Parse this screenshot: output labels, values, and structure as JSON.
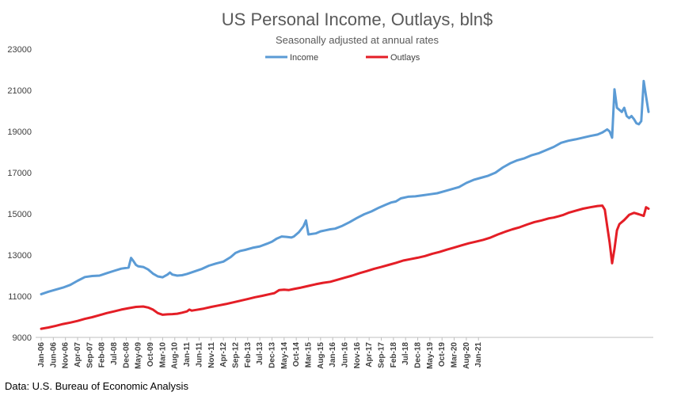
{
  "chart_data": {
    "type": "line",
    "title": "US Personal Income, Outlays, bln$",
    "subtitle": "Seasonally adjusted at annual rates",
    "source": "Data: U.S. Bureau of Economic Analysis",
    "ylim": [
      9000,
      23000
    ],
    "yticks": [
      9000,
      11000,
      13000,
      15000,
      17000,
      19000,
      21000,
      23000
    ],
    "ytick_labels": [
      "9000",
      "11000",
      "13000",
      "15000",
      "17000",
      "19000",
      "21000",
      "23000"
    ],
    "x_range": [
      "Jan-06",
      "Feb-21"
    ],
    "x_tick_labels": [
      "Jan-06",
      "Jun-06",
      "Nov-06",
      "Apr-07",
      "Sep-07",
      "Feb-08",
      "Jul-08",
      "Dec-08",
      "May-09",
      "Oct-09",
      "Mar-10",
      "Aug-10",
      "Jan-11",
      "Jun-11",
      "Nov-11",
      "Apr-12",
      "Sep-12",
      "Feb-13",
      "Jul-13",
      "Dec-13",
      "May-14",
      "Oct-14",
      "Mar-15",
      "Aug-15",
      "Jan-16",
      "Jun-16",
      "Nov-16",
      "Apr-17",
      "Sep-17",
      "Feb-18",
      "Jul-18",
      "Dec-18",
      "May-19",
      "Oct-19",
      "Mar-20",
      "Aug-20",
      "Jan-21"
    ],
    "grid": false,
    "legend_position": "top-center",
    "series": [
      {
        "name": "Income",
        "color": "#5B9BD5",
        "points": [
          [
            0,
            11100
          ],
          [
            3,
            11220
          ],
          [
            6,
            11320
          ],
          [
            9,
            11420
          ],
          [
            12,
            11550
          ],
          [
            15,
            11750
          ],
          [
            18,
            11930
          ],
          [
            21,
            11980
          ],
          [
            24,
            12000
          ],
          [
            27,
            12120
          ],
          [
            30,
            12230
          ],
          [
            33,
            12340
          ],
          [
            36,
            12390
          ],
          [
            37,
            12860
          ],
          [
            38,
            12700
          ],
          [
            39,
            12520
          ],
          [
            40,
            12450
          ],
          [
            42,
            12420
          ],
          [
            44,
            12300
          ],
          [
            46,
            12100
          ],
          [
            48,
            11960
          ],
          [
            50,
            11920
          ],
          [
            52,
            12050
          ],
          [
            53,
            12150
          ],
          [
            54,
            12050
          ],
          [
            56,
            12000
          ],
          [
            58,
            12020
          ],
          [
            60,
            12080
          ],
          [
            63,
            12200
          ],
          [
            66,
            12320
          ],
          [
            69,
            12480
          ],
          [
            72,
            12590
          ],
          [
            75,
            12680
          ],
          [
            78,
            12900
          ],
          [
            80,
            13100
          ],
          [
            82,
            13200
          ],
          [
            84,
            13250
          ],
          [
            87,
            13350
          ],
          [
            90,
            13420
          ],
          [
            93,
            13550
          ],
          [
            95,
            13650
          ],
          [
            97,
            13800
          ],
          [
            99,
            13900
          ],
          [
            101,
            13880
          ],
          [
            103,
            13850
          ],
          [
            104,
            13900
          ],
          [
            106,
            14100
          ],
          [
            107,
            14250
          ],
          [
            108,
            14400
          ],
          [
            109,
            14680
          ],
          [
            110,
            14000
          ],
          [
            113,
            14050
          ],
          [
            115,
            14150
          ],
          [
            117,
            14200
          ],
          [
            119,
            14250
          ],
          [
            121,
            14280
          ],
          [
            124,
            14420
          ],
          [
            127,
            14600
          ],
          [
            130,
            14800
          ],
          [
            133,
            14980
          ],
          [
            136,
            15120
          ],
          [
            139,
            15300
          ],
          [
            142,
            15450
          ],
          [
            144,
            15550
          ],
          [
            146,
            15600
          ],
          [
            148,
            15750
          ],
          [
            151,
            15830
          ],
          [
            154,
            15850
          ],
          [
            157,
            15900
          ],
          [
            160,
            15950
          ],
          [
            163,
            16000
          ],
          [
            166,
            16100
          ],
          [
            169,
            16200
          ],
          [
            172,
            16300
          ],
          [
            175,
            16500
          ],
          [
            178,
            16650
          ],
          [
            181,
            16750
          ],
          [
            184,
            16850
          ],
          [
            187,
            17000
          ],
          [
            190,
            17250
          ],
          [
            193,
            17450
          ],
          [
            196,
            17600
          ],
          [
            199,
            17700
          ],
          [
            202,
            17850
          ],
          [
            205,
            17950
          ],
          [
            208,
            18100
          ],
          [
            211,
            18250
          ],
          [
            214,
            18450
          ],
          [
            217,
            18550
          ],
          [
            220,
            18620
          ],
          [
            223,
            18700
          ],
          [
            226,
            18780
          ],
          [
            229,
            18850
          ],
          [
            231,
            18950
          ],
          [
            233,
            19100
          ],
          [
            234,
            19000
          ],
          [
            235,
            18700
          ],
          [
            236,
            21050
          ],
          [
            237,
            20150
          ],
          [
            238,
            20050
          ],
          [
            239,
            19950
          ],
          [
            240,
            20150
          ],
          [
            241,
            19750
          ],
          [
            242,
            19650
          ],
          [
            243,
            19750
          ],
          [
            244,
            19600
          ],
          [
            245,
            19400
          ],
          [
            246,
            19350
          ],
          [
            247,
            19500
          ],
          [
            248,
            21450
          ],
          [
            249,
            20700
          ],
          [
            250,
            19950
          ]
        ]
      },
      {
        "name": "Outlays",
        "color": "#E41E26",
        "points": [
          [
            0,
            9420
          ],
          [
            3,
            9480
          ],
          [
            6,
            9560
          ],
          [
            9,
            9650
          ],
          [
            12,
            9720
          ],
          [
            15,
            9800
          ],
          [
            18,
            9900
          ],
          [
            21,
            9980
          ],
          [
            24,
            10080
          ],
          [
            27,
            10180
          ],
          [
            30,
            10260
          ],
          [
            33,
            10350
          ],
          [
            36,
            10420
          ],
          [
            39,
            10480
          ],
          [
            42,
            10500
          ],
          [
            44,
            10450
          ],
          [
            46,
            10350
          ],
          [
            48,
            10180
          ],
          [
            50,
            10100
          ],
          [
            52,
            10120
          ],
          [
            54,
            10130
          ],
          [
            56,
            10150
          ],
          [
            58,
            10200
          ],
          [
            60,
            10260
          ],
          [
            61,
            10350
          ],
          [
            62,
            10300
          ],
          [
            64,
            10340
          ],
          [
            67,
            10400
          ],
          [
            70,
            10480
          ],
          [
            73,
            10550
          ],
          [
            76,
            10620
          ],
          [
            79,
            10700
          ],
          [
            82,
            10780
          ],
          [
            85,
            10860
          ],
          [
            88,
            10950
          ],
          [
            91,
            11020
          ],
          [
            94,
            11100
          ],
          [
            96,
            11150
          ],
          [
            98,
            11300
          ],
          [
            100,
            11320
          ],
          [
            102,
            11300
          ],
          [
            104,
            11350
          ],
          [
            107,
            11420
          ],
          [
            110,
            11500
          ],
          [
            113,
            11580
          ],
          [
            116,
            11650
          ],
          [
            119,
            11700
          ],
          [
            122,
            11800
          ],
          [
            125,
            11900
          ],
          [
            128,
            12000
          ],
          [
            131,
            12120
          ],
          [
            134,
            12220
          ],
          [
            137,
            12330
          ],
          [
            140,
            12420
          ],
          [
            143,
            12520
          ],
          [
            146,
            12620
          ],
          [
            149,
            12730
          ],
          [
            152,
            12800
          ],
          [
            155,
            12870
          ],
          [
            158,
            12950
          ],
          [
            161,
            13060
          ],
          [
            164,
            13150
          ],
          [
            167,
            13260
          ],
          [
            170,
            13360
          ],
          [
            173,
            13470
          ],
          [
            176,
            13570
          ],
          [
            179,
            13650
          ],
          [
            182,
            13740
          ],
          [
            185,
            13850
          ],
          [
            188,
            14000
          ],
          [
            191,
            14130
          ],
          [
            194,
            14250
          ],
          [
            197,
            14350
          ],
          [
            200,
            14480
          ],
          [
            203,
            14600
          ],
          [
            206,
            14680
          ],
          [
            209,
            14780
          ],
          [
            211,
            14820
          ],
          [
            213,
            14880
          ],
          [
            215,
            14950
          ],
          [
            217,
            15050
          ],
          [
            220,
            15150
          ],
          [
            223,
            15250
          ],
          [
            226,
            15320
          ],
          [
            229,
            15380
          ],
          [
            231,
            15400
          ],
          [
            232,
            15200
          ],
          [
            233,
            14400
          ],
          [
            234,
            13600
          ],
          [
            235,
            12600
          ],
          [
            236,
            13300
          ],
          [
            237,
            14200
          ],
          [
            238,
            14500
          ],
          [
            240,
            14700
          ],
          [
            242,
            14950
          ],
          [
            244,
            15050
          ],
          [
            246,
            14980
          ],
          [
            248,
            14900
          ],
          [
            249,
            15320
          ],
          [
            250,
            15250
          ]
        ]
      }
    ]
  }
}
